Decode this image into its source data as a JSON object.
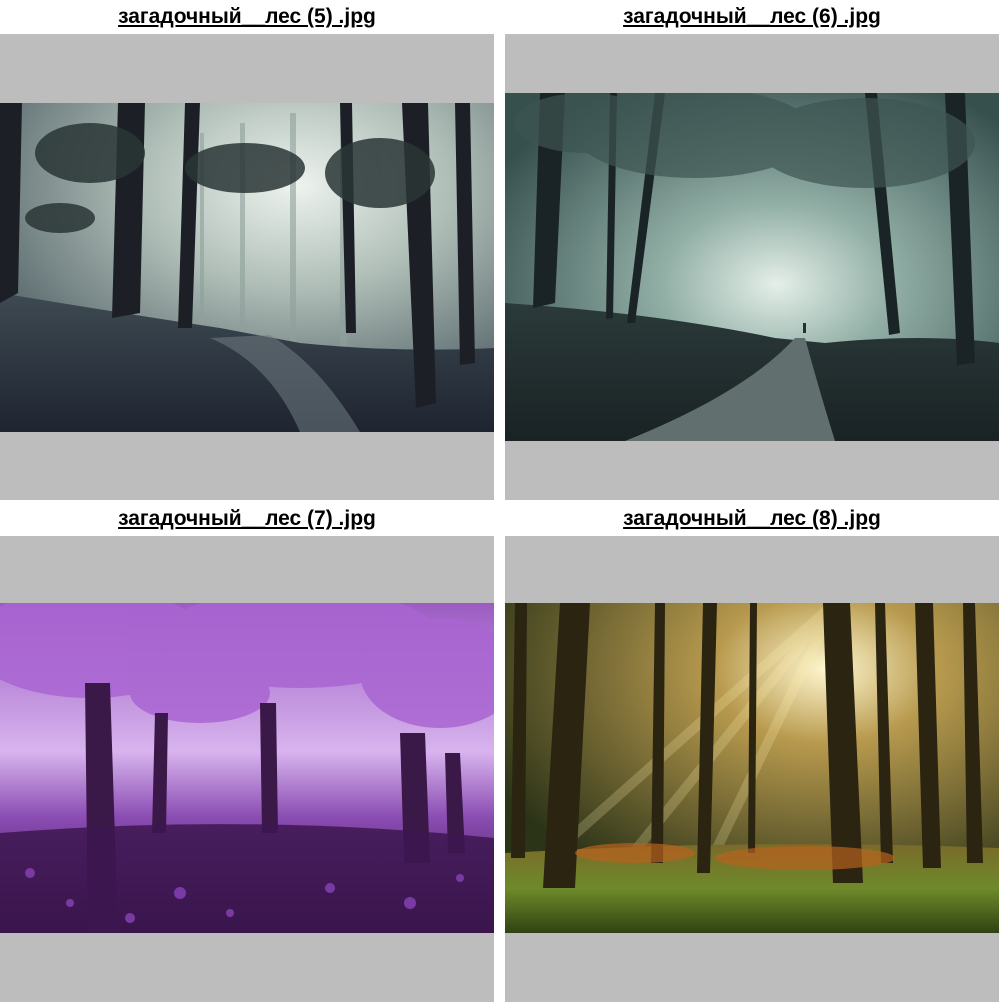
{
  "gallery": {
    "tiles": [
      {
        "caption": "загадочный__лес (5) .jpg",
        "scene": "misty-dark-forest-path"
      },
      {
        "caption": "загадочный__лес (6) .jpg",
        "scene": "foggy-forest-road"
      },
      {
        "caption": "загадочный__лес (7) .jpg",
        "scene": "purple-blossom-forest"
      },
      {
        "caption": "загадочный__лес (8) .jpg",
        "scene": "sunlit-pine-forest"
      }
    ]
  }
}
